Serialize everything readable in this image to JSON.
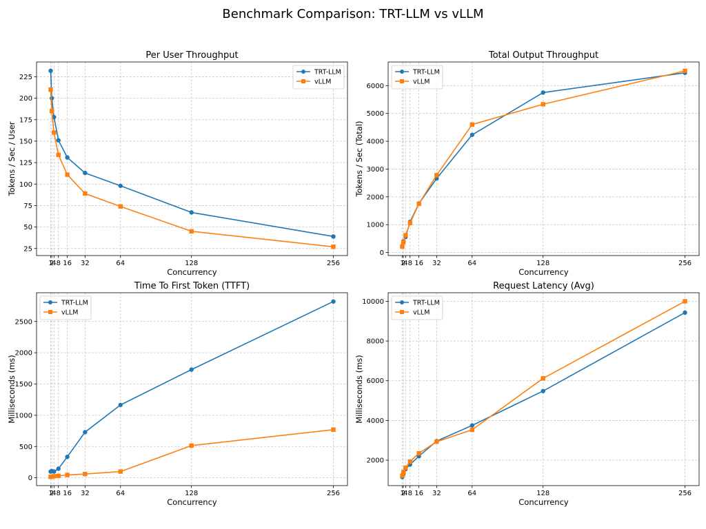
{
  "figure": {
    "title": "Benchmark Comparison: TRT-LLM vs vLLM"
  },
  "colors": {
    "TRT-LLM": "#1f77b4",
    "vLLM": "#ff7f0e",
    "grid": "#b0b0b0",
    "frame": "#000000"
  },
  "chart_data": [
    {
      "type": "line",
      "title": "Per User Throughput",
      "xlabel": "Concurrency",
      "ylabel": "Tokens / Sec / User",
      "x": [
        1,
        2,
        4,
        8,
        16,
        32,
        64,
        128,
        256
      ],
      "xticks": [
        1,
        2,
        4,
        8,
        16,
        32,
        64,
        128,
        256
      ],
      "xlim": [
        -11.75,
        268.75
      ],
      "yticks": [
        25,
        50,
        75,
        100,
        125,
        150,
        175,
        200,
        225
      ],
      "ylim": [
        16.8,
        242.2
      ],
      "grid": true,
      "legend": "top-right",
      "series": [
        {
          "name": "TRT-LLM",
          "marker": "circle",
          "values": [
            232,
            200,
            178,
            151,
            131,
            113,
            98,
            67,
            39
          ]
        },
        {
          "name": "vLLM",
          "marker": "square",
          "values": [
            210,
            185,
            160,
            134,
            111,
            89,
            74,
            45,
            27
          ]
        }
      ]
    },
    {
      "type": "line",
      "title": "Total Output Throughput",
      "xlabel": "Concurrency",
      "ylabel": "Tokens / Sec (Total)",
      "x": [
        1,
        2,
        4,
        8,
        16,
        32,
        64,
        128,
        256
      ],
      "xticks": [
        1,
        2,
        4,
        8,
        16,
        32,
        64,
        128,
        256
      ],
      "xlim": [
        -11.75,
        268.75
      ],
      "yticks": [
        0,
        1000,
        2000,
        3000,
        4000,
        5000,
        6000
      ],
      "ylim": [
        -110,
        6850
      ],
      "grid": true,
      "legend": "top-left",
      "series": [
        {
          "name": "TRT-LLM",
          "marker": "circle",
          "values": [
            232,
            400,
            560,
            1100,
            1760,
            2660,
            4230,
            5750,
            6460
          ]
        },
        {
          "name": "vLLM",
          "marker": "square",
          "values": [
            210,
            370,
            620,
            1060,
            1750,
            2780,
            4600,
            5330,
            6530
          ]
        }
      ]
    },
    {
      "type": "line",
      "title": "Time To First Token (TTFT)",
      "xlabel": "Concurrency",
      "ylabel": "Milliseconds (ms)",
      "x": [
        1,
        2,
        4,
        8,
        16,
        32,
        64,
        128,
        256
      ],
      "xticks": [
        1,
        2,
        4,
        8,
        16,
        32,
        64,
        128,
        256
      ],
      "xlim": [
        -11.75,
        268.75
      ],
      "yticks": [
        0,
        500,
        1000,
        1500,
        2000,
        2500
      ],
      "ylim": [
        -125,
        2960
      ],
      "grid": true,
      "legend": "top-left",
      "series": [
        {
          "name": "TRT-LLM",
          "marker": "circle",
          "values": [
            100,
            108,
            100,
            145,
            335,
            730,
            1165,
            1730,
            2820
          ]
        },
        {
          "name": "vLLM",
          "marker": "square",
          "values": [
            15,
            18,
            25,
            30,
            45,
            60,
            100,
            515,
            770
          ]
        }
      ]
    },
    {
      "type": "line",
      "title": "Request Latency (Avg)",
      "xlabel": "Concurrency",
      "ylabel": "Milliseconds (ms)",
      "x": [
        1,
        2,
        4,
        8,
        16,
        32,
        64,
        128,
        256
      ],
      "xticks": [
        1,
        2,
        4,
        8,
        16,
        32,
        64,
        128,
        256
      ],
      "xlim": [
        -11.75,
        268.75
      ],
      "yticks": [
        2000,
        4000,
        6000,
        8000,
        10000
      ],
      "ylim": [
        720,
        10430
      ],
      "grid": true,
      "legend": "top-left",
      "series": [
        {
          "name": "TRT-LLM",
          "marker": "circle",
          "values": [
            1150,
            1300,
            1550,
            1780,
            2200,
            2960,
            3750,
            5480,
            9430
          ]
        },
        {
          "name": "vLLM",
          "marker": "square",
          "values": [
            1220,
            1400,
            1620,
            1930,
            2350,
            2930,
            3530,
            6120,
            10000
          ]
        }
      ]
    }
  ]
}
